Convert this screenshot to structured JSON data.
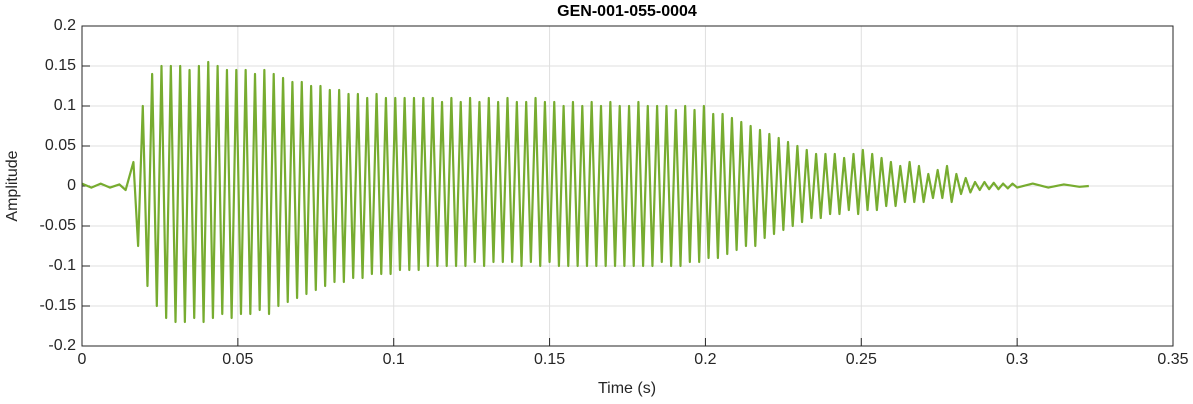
{
  "chart_data": {
    "type": "line",
    "title": "GEN-001-055-0004",
    "xlabel": "Time (s)",
    "ylabel": "Amplitude",
    "color": "#77ac30",
    "grid": true,
    "xlim": [
      0,
      0.35
    ],
    "xticks": [
      0,
      0.05,
      0.1,
      0.15,
      0.2,
      0.25,
      0.3,
      0.35
    ],
    "ylim": [
      -0.2,
      0.2
    ],
    "yticks": [
      -0.2,
      -0.15,
      -0.1,
      -0.05,
      0,
      0.05,
      0.1,
      0.15,
      0.2
    ],
    "x": [
      0,
      0.003,
      0.006,
      0.009,
      0.012,
      0.014,
      0.0165,
      0.018,
      0.0195,
      0.021,
      0.0225,
      0.024,
      0.0255,
      0.027,
      0.0285,
      0.03,
      0.0315,
      0.033,
      0.0345,
      0.036,
      0.0375,
      0.039,
      0.0405,
      0.042,
      0.0435,
      0.045,
      0.0465,
      0.048,
      0.0495,
      0.051,
      0.0525,
      0.054,
      0.0555,
      0.057,
      0.0585,
      0.06,
      0.0615,
      0.063,
      0.0645,
      0.066,
      0.0675,
      0.069,
      0.0705,
      0.072,
      0.0735,
      0.075,
      0.0765,
      0.078,
      0.0795,
      0.081,
      0.0825,
      0.084,
      0.0855,
      0.087,
      0.0885,
      0.09,
      0.0915,
      0.093,
      0.0945,
      0.096,
      0.0975,
      0.099,
      0.1005,
      0.102,
      0.1035,
      0.105,
      0.1065,
      0.108,
      0.1095,
      0.111,
      0.1125,
      0.114,
      0.1155,
      0.117,
      0.1185,
      0.12,
      0.1215,
      0.123,
      0.1245,
      0.126,
      0.1275,
      0.129,
      0.1305,
      0.132,
      0.1335,
      0.135,
      0.1365,
      0.138,
      0.1395,
      0.141,
      0.1425,
      0.144,
      0.1455,
      0.147,
      0.1485,
      0.15,
      0.1515,
      0.153,
      0.1545,
      0.156,
      0.1575,
      0.159,
      0.1605,
      0.162,
      0.1635,
      0.165,
      0.1665,
      0.168,
      0.1695,
      0.171,
      0.1725,
      0.174,
      0.1755,
      0.177,
      0.1785,
      0.18,
      0.1815,
      0.183,
      0.1845,
      0.186,
      0.1875,
      0.189,
      0.1905,
      0.192,
      0.1935,
      0.195,
      0.1965,
      0.198,
      0.1995,
      0.201,
      0.2025,
      0.204,
      0.2055,
      0.207,
      0.2085,
      0.21,
      0.2115,
      0.213,
      0.2145,
      0.216,
      0.2175,
      0.219,
      0.2205,
      0.222,
      0.2235,
      0.225,
      0.2265,
      0.228,
      0.2295,
      0.231,
      0.2325,
      0.234,
      0.2355,
      0.237,
      0.2385,
      0.24,
      0.2415,
      0.243,
      0.2445,
      0.246,
      0.2475,
      0.249,
      0.2505,
      0.252,
      0.2535,
      0.255,
      0.2565,
      0.258,
      0.2595,
      0.261,
      0.2625,
      0.264,
      0.2655,
      0.267,
      0.2685,
      0.27,
      0.2715,
      0.273,
      0.2745,
      0.276,
      0.2775,
      0.279,
      0.2805,
      0.282,
      0.2835,
      0.285,
      0.2865,
      0.288,
      0.2895,
      0.291,
      0.2925,
      0.294,
      0.2955,
      0.297,
      0.2985,
      0.3,
      0.305,
      0.31,
      0.315,
      0.32,
      0.323
    ],
    "values": [
      0.003,
      -0.002,
      0.003,
      -0.002,
      0.002,
      -0.005,
      0.03,
      -0.075,
      0.1,
      -0.125,
      0.14,
      -0.15,
      0.15,
      -0.165,
      0.15,
      -0.17,
      0.15,
      -0.17,
      0.145,
      -0.165,
      0.15,
      -0.17,
      0.155,
      -0.165,
      0.15,
      -0.16,
      0.145,
      -0.165,
      0.145,
      -0.16,
      0.145,
      -0.16,
      0.14,
      -0.155,
      0.145,
      -0.16,
      0.14,
      -0.15,
      0.135,
      -0.145,
      0.13,
      -0.14,
      0.13,
      -0.135,
      0.125,
      -0.13,
      0.125,
      -0.125,
      0.12,
      -0.12,
      0.12,
      -0.12,
      0.115,
      -0.115,
      0.115,
      -0.115,
      0.11,
      -0.11,
      0.115,
      -0.11,
      0.11,
      -0.11,
      0.11,
      -0.105,
      0.11,
      -0.105,
      0.11,
      -0.105,
      0.11,
      -0.1,
      0.11,
      -0.1,
      0.105,
      -0.1,
      0.11,
      -0.1,
      0.105,
      -0.1,
      0.11,
      -0.095,
      0.105,
      -0.1,
      0.11,
      -0.095,
      0.105,
      -0.095,
      0.11,
      -0.095,
      0.105,
      -0.1,
      0.105,
      -0.095,
      0.11,
      -0.1,
      0.105,
      -0.095,
      0.105,
      -0.1,
      0.1,
      -0.1,
      0.105,
      -0.1,
      0.1,
      -0.1,
      0.105,
      -0.1,
      0.1,
      -0.1,
      0.105,
      -0.1,
      0.1,
      -0.1,
      0.1,
      -0.1,
      0.105,
      -0.1,
      0.1,
      -0.1,
      0.1,
      -0.095,
      0.1,
      -0.1,
      0.095,
      -0.1,
      0.1,
      -0.095,
      0.095,
      -0.095,
      0.1,
      -0.09,
      0.09,
      -0.09,
      0.09,
      -0.085,
      0.085,
      -0.08,
      0.08,
      -0.075,
      0.075,
      -0.075,
      0.07,
      -0.065,
      0.065,
      -0.06,
      0.06,
      -0.055,
      0.055,
      -0.05,
      0.05,
      -0.045,
      0.045,
      -0.04,
      0.04,
      -0.04,
      0.04,
      -0.035,
      0.04,
      -0.035,
      0.035,
      -0.03,
      0.04,
      -0.035,
      0.045,
      -0.03,
      0.04,
      -0.03,
      0.035,
      -0.025,
      0.03,
      -0.025,
      0.025,
      -0.02,
      0.03,
      -0.02,
      0.025,
      -0.02,
      0.015,
      -0.015,
      0.02,
      -0.015,
      0.025,
      -0.02,
      0.015,
      -0.01,
      0.01,
      -0.008,
      0.005,
      -0.005,
      0.005,
      -0.004,
      0.004,
      -0.004,
      0.003,
      -0.003,
      0.003,
      -0.002,
      0.003,
      -0.002,
      0.002,
      -0.001,
      0
    ]
  }
}
